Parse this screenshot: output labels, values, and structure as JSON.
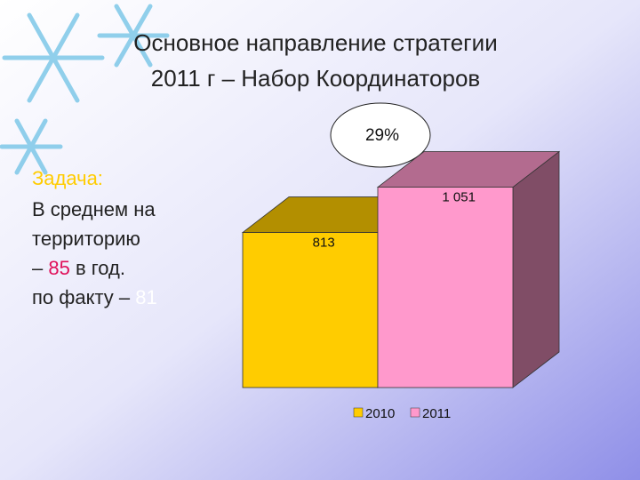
{
  "slide": {
    "title_lines": [
      "Основное направление стратегии",
      "2011 г – Набор Координаторов"
    ],
    "task": {
      "heading": "Задача:",
      "line1": "В среднем на",
      "line2": "территорию",
      "line3_prefix": "– ",
      "plan": "85",
      "line3_suffix": " в год.",
      "line4_prefix": "по факту – ",
      "fact": "81"
    }
  },
  "chart_data": {
    "type": "bar3d",
    "annotation": "29%",
    "categories": [
      ""
    ],
    "series": [
      {
        "name": "2010",
        "color": "#ffcc00",
        "values": [
          813
        ],
        "value_labels": [
          "813"
        ]
      },
      {
        "name": "2011",
        "color": "#ff99cc",
        "values": [
          1051
        ],
        "value_labels": [
          "1 051"
        ]
      }
    ],
    "ylim": [
      0,
      1100
    ]
  }
}
